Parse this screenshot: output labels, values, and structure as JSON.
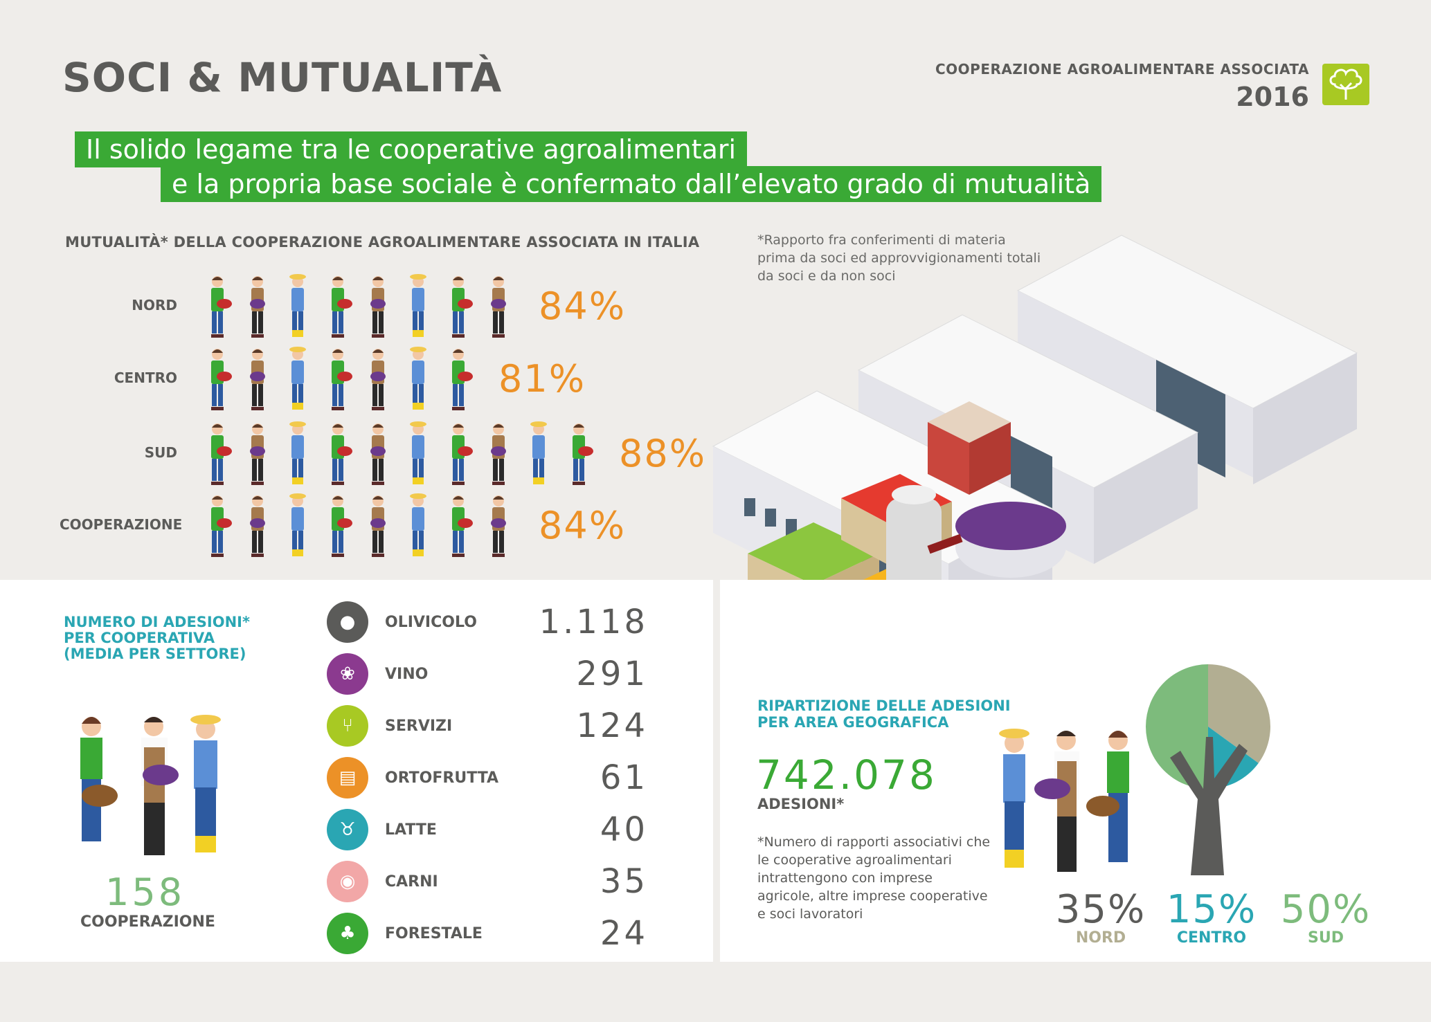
{
  "header": {
    "title": "SOCI & MUTUALITÀ",
    "org": "COOPERAZIONE AGROALIMENTARE ASSOCIATA",
    "year": "2016"
  },
  "banner": {
    "line1": "Il solido legame tra le cooperative agroalimentari",
    "line2": "e la propria base sociale è confermato dall’elevato grado di mutualità"
  },
  "mutualita": {
    "title": "MUTUALITÀ* DELLA COOPERAZIONE AGROALIMENTARE ASSOCIATA IN ITALIA",
    "footnote": "*Rapporto fra conferimenti di materia prima da soci ed approvvigionamenti totali da soci e da non soci",
    "rows": [
      {
        "label": "NORD",
        "value": "84%",
        "people": 8
      },
      {
        "label": "CENTRO",
        "value": "81%",
        "people": 7
      },
      {
        "label": "SUD",
        "value": "88%",
        "people": 10
      },
      {
        "label": "COOPERAZIONE",
        "value": "84%",
        "people": 8
      }
    ]
  },
  "adesioni": {
    "title_l1": "NUMERO DI ADESIONI*",
    "title_l2": "PER COOPERATIVA",
    "title_l3": "(MEDIA PER SETTORE)",
    "total": "158",
    "total_label": "COOPERAZIONE",
    "sectors": [
      {
        "name": "OLIVICOLO",
        "value": "1.118",
        "color": "#5b5b59",
        "icon": "olive-icon"
      },
      {
        "name": "VINO",
        "value": "291",
        "color": "#8b3a8f",
        "icon": "grape-icon"
      },
      {
        "name": "SERVIZI",
        "value": "124",
        "color": "#a8c923",
        "icon": "cutlery-icon"
      },
      {
        "name": "ORTOFRUTTA",
        "value": "61",
        "color": "#ec9127",
        "icon": "crate-icon"
      },
      {
        "name": "LATTE",
        "value": "40",
        "color": "#2aa6b3",
        "icon": "cow-icon"
      },
      {
        "name": "CARNI",
        "value": "35",
        "color": "#f2a7a7",
        "icon": "meat-icon"
      },
      {
        "name": "FORESTALE",
        "value": "24",
        "color": "#3aa935",
        "icon": "tree-icon"
      }
    ]
  },
  "ripartizione": {
    "title_l1": "RIPARTIZIONE DELLE ADESIONI",
    "title_l2": "PER AREA GEOGRAFICA",
    "total": "742.078",
    "total_label": "ADESIONI*",
    "note": "*Numero di rapporti associativi che le cooperative agroalimentari intrattengono con imprese agricole, altre imprese cooperative e soci lavoratori",
    "areas": [
      {
        "name": "NORD",
        "value": "35%",
        "share": 35,
        "color": "#b2ae92"
      },
      {
        "name": "CENTRO",
        "value": "15%",
        "share": 15,
        "color": "#2aa6b3"
      },
      {
        "name": "SUD",
        "value": "50%",
        "share": 50,
        "color": "#7dbb7c"
      }
    ]
  },
  "colors": {
    "green": "#3aa935",
    "orange": "#ec9127",
    "teal": "#2aa6b3",
    "grey": "#5b5b59",
    "background": "#efedea"
  }
}
